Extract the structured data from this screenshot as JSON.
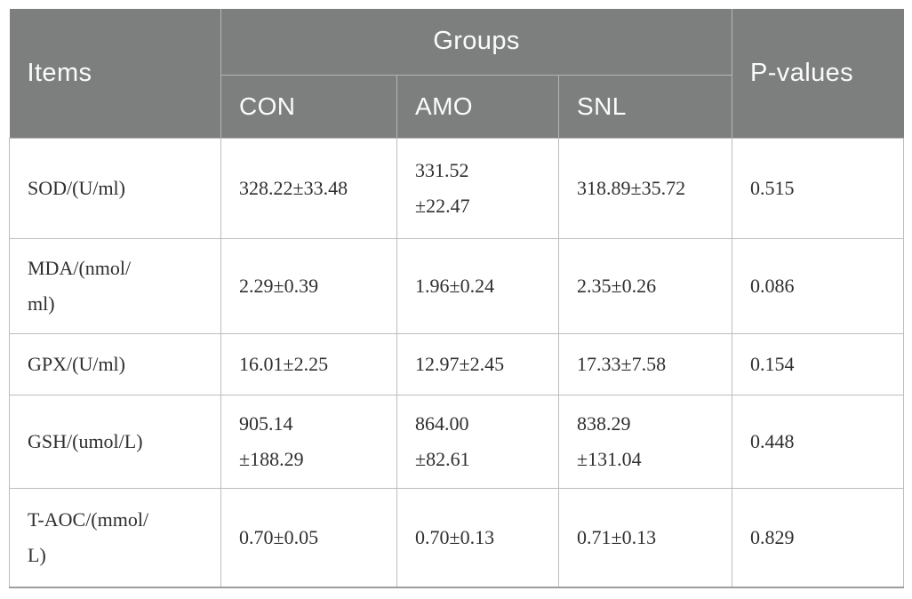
{
  "colors": {
    "header_background": "#7d7f7e",
    "header_text": "#fbfbfb",
    "header_divider": "#b4b5b4",
    "body_border": "#bcbdbc",
    "body_text": "#2f2f2f",
    "bottom_rule": "#9c9d9c"
  },
  "table": {
    "header": {
      "items_label": "Items",
      "groups_label": "Groups",
      "group_columns": [
        "CON",
        "AMO",
        "SNL"
      ],
      "pvalues_label": "P-values"
    },
    "rows": [
      {
        "item": "SOD/(U/ml)",
        "con": "328.22±33.48",
        "amo": "331.52\n±22.47",
        "snl": "318.89±35.72",
        "p": "0.515"
      },
      {
        "item": "MDA/(nmol/\nml)",
        "con": "2.29±0.39",
        "amo": "1.96±0.24",
        "snl": "2.35±0.26",
        "p": "0.086"
      },
      {
        "item": "GPX/(U/ml)",
        "con": "16.01±2.25",
        "amo": "12.97±2.45",
        "snl": "17.33±7.58",
        "p": "0.154"
      },
      {
        "item": "GSH/(umol/L)",
        "con": "905.14\n±188.29",
        "amo": "864.00\n±82.61",
        "snl": "838.29\n±131.04",
        "p": "0.448"
      },
      {
        "item": "T-AOC/(mmol/\nL)",
        "con": "0.70±0.05",
        "amo": "0.70±0.13",
        "snl": "0.71±0.13",
        "p": "0.829"
      }
    ]
  }
}
